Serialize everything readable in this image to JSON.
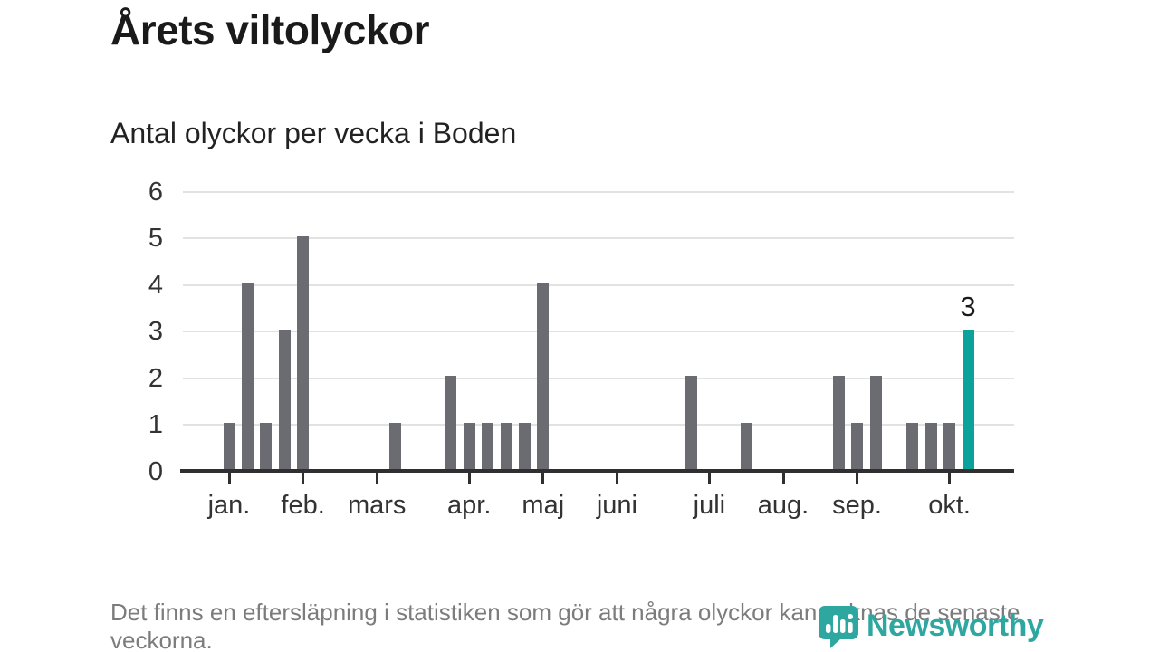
{
  "header": {
    "title": "Årets viltolyckor",
    "subtitle": "Antal olyckor per vecka i Boden"
  },
  "chart_data": {
    "type": "bar",
    "title": "Årets viltolyckor",
    "subtitle": "Antal olyckor per vecka i Boden",
    "x_unit": "vecka",
    "first_week": 1,
    "values": [
      1,
      4,
      1,
      3,
      5,
      0,
      0,
      0,
      0,
      1,
      0,
      0,
      2,
      1,
      1,
      1,
      1,
      4,
      0,
      0,
      0,
      0,
      0,
      0,
      0,
      2,
      0,
      0,
      1,
      0,
      0,
      0,
      0,
      2,
      1,
      2,
      0,
      1,
      1,
      1,
      3
    ],
    "ylim": [
      0,
      6
    ],
    "yticks": [
      0,
      1,
      2,
      3,
      4,
      5,
      6
    ],
    "grid": "horizontal",
    "legend": "none",
    "month_ticks": [
      {
        "label": "jan.",
        "week": 1
      },
      {
        "label": "feb.",
        "week": 5
      },
      {
        "label": "mars",
        "week": 9
      },
      {
        "label": "apr.",
        "week": 14
      },
      {
        "label": "maj",
        "week": 18
      },
      {
        "label": "juni",
        "week": 22
      },
      {
        "label": "juli",
        "week": 27
      },
      {
        "label": "aug.",
        "week": 31
      },
      {
        "label": "sep.",
        "week": 35
      },
      {
        "label": "okt.",
        "week": 40
      }
    ],
    "highlight": {
      "week": 41,
      "value": 3,
      "label": "3"
    },
    "colors": {
      "bar": "#6b6b72",
      "highlight": "#0aa29a",
      "grid": "#e2e2e2",
      "axis": "#2f2f2f",
      "tick_text": "#333333"
    }
  },
  "footer": {
    "note": "Det finns en eftersläpning i statistiken som gör att några olyckor kan saknas de senaste veckorna.",
    "logo_text": "Newsworthy",
    "logo_color": "#2da7a0"
  }
}
